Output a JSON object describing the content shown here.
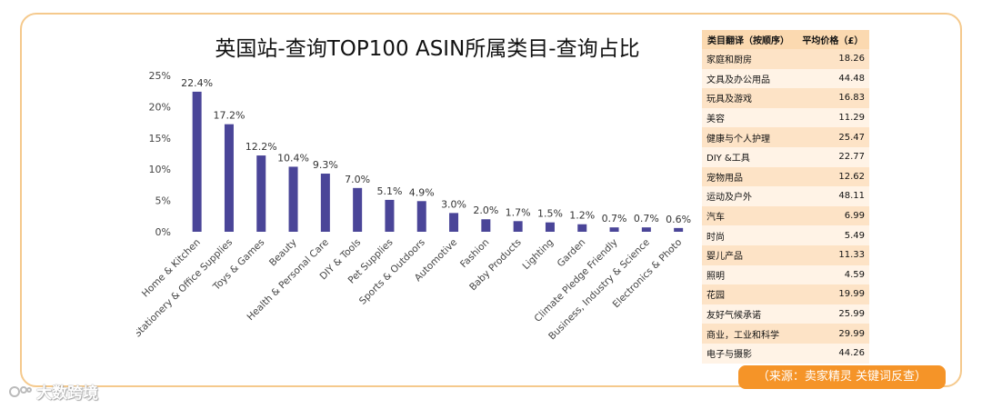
{
  "chart_data": {
    "type": "bar",
    "title": "英国站-查询TOP100 ASIN所属类目-查询占比",
    "categories": [
      "Home & Kitchen",
      "Stationery & Office Supplies",
      "Toys & Games",
      "Beauty",
      "Health & Personal Care",
      "DIY & Tools",
      "Pet Supplies",
      "Sports & Outdoors",
      "Automotive",
      "Fashion",
      "Baby Products",
      "Lighting",
      "Garden",
      "Climate Pledge Friendly",
      "Business, Industry & Science",
      "Electronics & Photo"
    ],
    "values": [
      22.4,
      17.2,
      12.2,
      10.4,
      9.3,
      7.0,
      5.1,
      4.9,
      3.0,
      2.0,
      1.7,
      1.5,
      1.2,
      0.7,
      0.7,
      0.6
    ],
    "value_labels": [
      "22.4%",
      "17.2%",
      "12.2%",
      "10.4%",
      "9.3%",
      "7.0%",
      "5.1%",
      "4.9%",
      "3.0%",
      "2.0%",
      "1.7%",
      "1.5%",
      "1.2%",
      "0.7%",
      "0.7%",
      "0.6%"
    ],
    "y_ticks": [
      "25%",
      "20%",
      "15%",
      "10%",
      "5%",
      "0%"
    ],
    "ylim": [
      0,
      25
    ],
    "bar_color": "#4a4598",
    "grid": false
  },
  "table": {
    "headers": [
      "类目翻译（按顺序）",
      "平均价格（£）"
    ],
    "rows": [
      {
        "category": "家庭和厨房",
        "price": "18.26"
      },
      {
        "category": "文具及办公用品",
        "price": "44.48"
      },
      {
        "category": "玩具及游戏",
        "price": "16.83"
      },
      {
        "category": "美容",
        "price": "11.29"
      },
      {
        "category": "健康与个人护理",
        "price": "25.47"
      },
      {
        "category": "DIY &工具",
        "price": "22.77"
      },
      {
        "category": "宠物用品",
        "price": "12.62"
      },
      {
        "category": "运动及户外",
        "price": "48.11"
      },
      {
        "category": "汽车",
        "price": "6.99"
      },
      {
        "category": "时尚",
        "price": "5.49"
      },
      {
        "category": "婴儿产品",
        "price": "11.33"
      },
      {
        "category": "照明",
        "price": "4.59"
      },
      {
        "category": "花园",
        "price": "19.99"
      },
      {
        "category": "友好气候承诺",
        "price": "25.99"
      },
      {
        "category": "商业，工业和科学",
        "price": "29.99"
      },
      {
        "category": "电子与摄影",
        "price": "44.26"
      }
    ]
  },
  "source_text": "（来源：卖家精灵 关键词反查）",
  "watermark_text": "大数跨境",
  "colors": {
    "border": "#f5c98c",
    "accent": "#f59428",
    "table_header": "#fbd9b0"
  }
}
